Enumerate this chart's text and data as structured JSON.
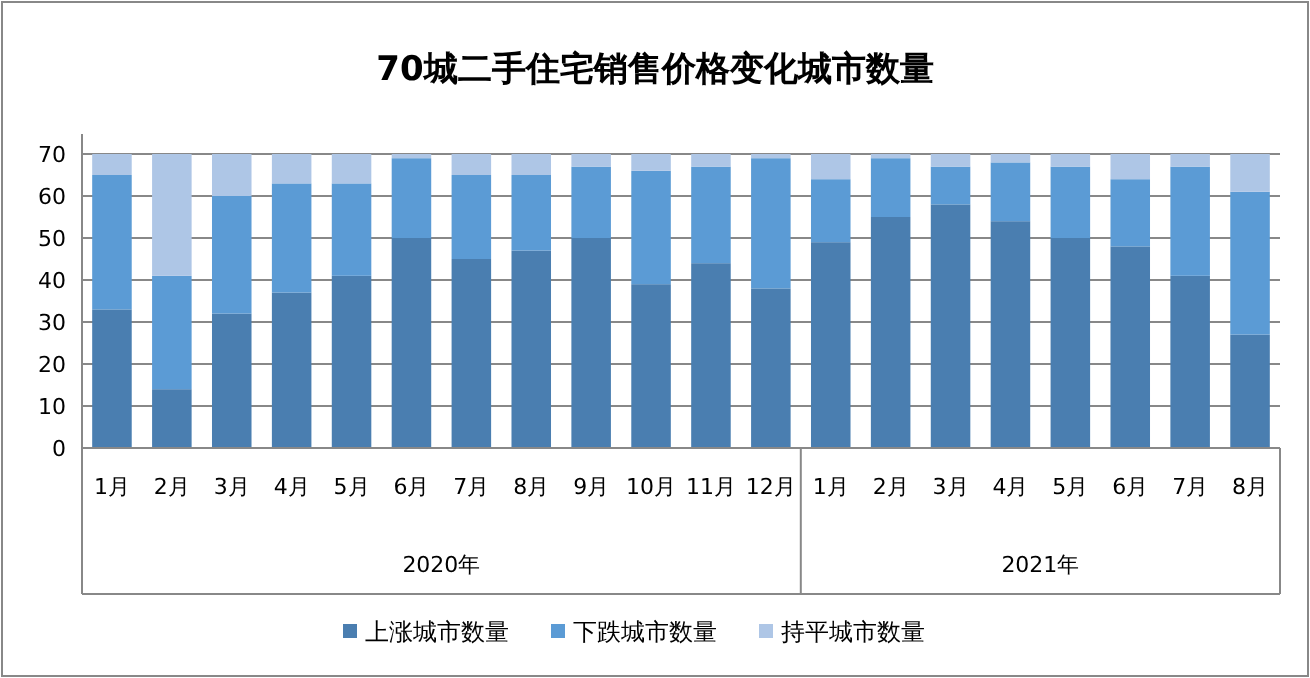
{
  "chart_data": {
    "type": "bar",
    "title": "70城二手住宅销售价格变化城市数量",
    "stacked": true,
    "categories": [
      "1月",
      "2月",
      "3月",
      "4月",
      "5月",
      "6月",
      "7月",
      "8月",
      "9月",
      "10月",
      "11月",
      "12月",
      "1月",
      "2月",
      "3月",
      "4月",
      "5月",
      "6月",
      "7月",
      "8月"
    ],
    "series": [
      {
        "name": "上涨城市数量",
        "color": "#4a7eb0",
        "values": [
          33,
          14,
          32,
          37,
          41,
          50,
          45,
          47,
          50,
          39,
          44,
          38,
          49,
          55,
          58,
          54,
          50,
          48,
          41,
          27
        ]
      },
      {
        "name": "下跌城市数量",
        "color": "#5b9bd5",
        "values": [
          32,
          27,
          28,
          26,
          22,
          19,
          20,
          18,
          17,
          27,
          23,
          31,
          15,
          14,
          9,
          14,
          17,
          16,
          26,
          34
        ]
      },
      {
        "name": "持平城市数量",
        "color": "#aec6e6",
        "values": [
          5,
          29,
          10,
          7,
          7,
          1,
          5,
          5,
          3,
          4,
          3,
          1,
          6,
          1,
          3,
          2,
          3,
          6,
          3,
          9
        ]
      }
    ],
    "ylim": [
      0,
      70
    ],
    "yticks": [
      0,
      10,
      20,
      30,
      40,
      50,
      60,
      70
    ],
    "grid": "y",
    "legend": "bottom",
    "annotations": [
      "2020年",
      "2021年"
    ]
  }
}
